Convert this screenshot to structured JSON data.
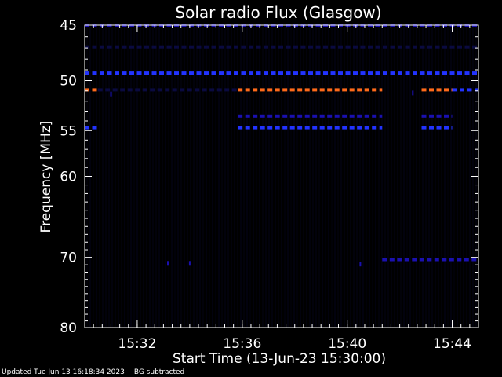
{
  "chart_data": {
    "type": "heatmap",
    "title": "Solar radio Flux (Glasgow)",
    "xlabel": "Start Time (13-Jun-23 15:30:00)",
    "ylabel": "Frequency [MHz]",
    "y_scale": "log",
    "ylim": [
      45,
      80
    ],
    "xlim": [
      "15:30:00",
      "15:45:00"
    ],
    "x_ticks": [
      "15:32",
      "15:36",
      "15:40",
      "15:44"
    ],
    "y_ticks": [
      45,
      50,
      55,
      60,
      70,
      80
    ],
    "colors": {
      "background": "#000000",
      "weak": "#1a10b0",
      "medium": "#2233ff",
      "strong": "#ff6a1a",
      "faint": "#0a0a40"
    },
    "bands": [
      {
        "freq": 45.0,
        "start": "15:30:00",
        "end": "15:45:00",
        "level": "weak"
      },
      {
        "freq": 46.9,
        "start": "15:30:00",
        "end": "15:45:00",
        "level": "faint"
      },
      {
        "freq": 49.3,
        "start": "15:30:00",
        "end": "15:45:00",
        "level": "medium"
      },
      {
        "freq": 50.9,
        "start": "15:30:00",
        "end": "15:30:30",
        "level": "strong"
      },
      {
        "freq": 50.9,
        "start": "15:35:50",
        "end": "15:41:20",
        "level": "strong"
      },
      {
        "freq": 50.9,
        "start": "15:42:50",
        "end": "15:44:00",
        "level": "strong"
      },
      {
        "freq": 50.9,
        "start": "15:30:30",
        "end": "15:35:50",
        "level": "faint"
      },
      {
        "freq": 50.9,
        "start": "15:44:00",
        "end": "15:45:00",
        "level": "medium"
      },
      {
        "freq": 53.5,
        "start": "15:35:50",
        "end": "15:41:20",
        "level": "weak"
      },
      {
        "freq": 53.5,
        "start": "15:42:50",
        "end": "15:44:00",
        "level": "weak"
      },
      {
        "freq": 54.7,
        "start": "15:30:00",
        "end": "15:30:30",
        "level": "medium"
      },
      {
        "freq": 54.7,
        "start": "15:35:50",
        "end": "15:41:20",
        "level": "medium"
      },
      {
        "freq": 54.7,
        "start": "15:42:50",
        "end": "15:44:00",
        "level": "medium"
      },
      {
        "freq": 70.3,
        "start": "15:41:20",
        "end": "15:45:00",
        "level": "weak"
      }
    ],
    "spots": [
      {
        "time": "15:33:10",
        "freq": 70.8,
        "level": "weak"
      },
      {
        "time": "15:34:00",
        "freq": 70.8,
        "level": "weak"
      },
      {
        "time": "15:40:30",
        "freq": 70.9,
        "level": "weak"
      },
      {
        "time": "15:31:00",
        "freq": 51.3,
        "level": "weak"
      },
      {
        "time": "15:42:30",
        "freq": 51.2,
        "level": "weak"
      }
    ]
  },
  "footer": {
    "updated": "Updated Tue Jun 13 16:18:34 2023",
    "note": "BG subtracted"
  }
}
